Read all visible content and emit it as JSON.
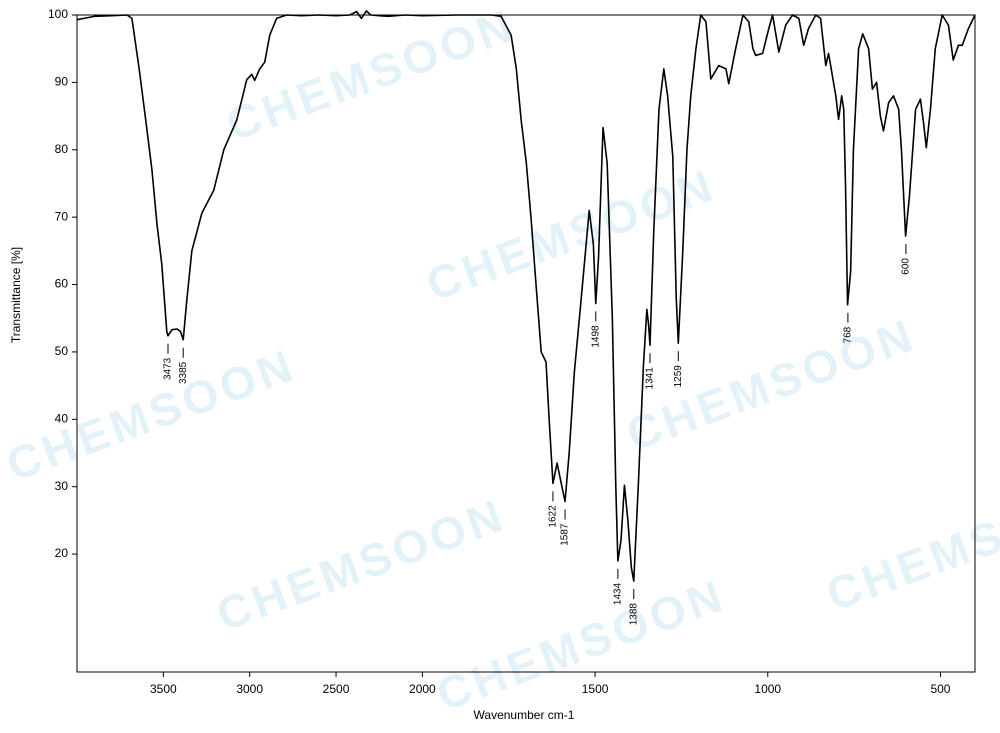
{
  "chart_data": {
    "type": "line",
    "y_label": "Transmittance [%]",
    "x_label": "Wavenumber cm-1",
    "watermark": "CHEMSOON",
    "xlim": [
      4000,
      400
    ],
    "x_break": 2000,
    "x_break_ratio": 2,
    "xticks": [
      3500,
      3000,
      2500,
      2000,
      1500,
      1000,
      500
    ],
    "ylim": [
      2.5,
      100
    ],
    "yticks": [
      20,
      30,
      40,
      50,
      60,
      70,
      80,
      90,
      100
    ],
    "x": [
      4000,
      3900,
      3800,
      3711,
      3682,
      3640,
      3600,
      3566,
      3537,
      3509,
      3480,
      3473,
      3450,
      3420,
      3400,
      3385,
      3364,
      3335,
      3277,
      3208,
      3150,
      3075,
      3046,
      3017,
      2988,
      2971,
      2942,
      2913,
      2884,
      2844,
      2786,
      2700,
      2600,
      2500,
      2420,
      2381,
      2353,
      2324,
      2300,
      2200,
      2100,
      2000,
      1900,
      1800,
      1772,
      1743,
      1728,
      1714,
      1699,
      1685,
      1671,
      1656,
      1642,
      1633,
      1622,
      1610,
      1600,
      1587,
      1575,
      1560,
      1540,
      1517,
      1505,
      1498,
      1490,
      1477,
      1465,
      1450,
      1440,
      1434,
      1425,
      1415,
      1405,
      1395,
      1388,
      1375,
      1360,
      1350,
      1345,
      1341,
      1330,
      1315,
      1301,
      1290,
      1275,
      1265,
      1259,
      1246,
      1234,
      1223,
      1208,
      1194,
      1179,
      1165,
      1142,
      1121,
      1113,
      1093,
      1072,
      1055,
      1043,
      1035,
      1015,
      997,
      986,
      968,
      948,
      928,
      910,
      896,
      882,
      861,
      847,
      832,
      824,
      803,
      795,
      786,
      780,
      775,
      769,
      760,
      752,
      737,
      725,
      708,
      697,
      685,
      674,
      665,
      650,
      636,
      621,
      613,
      601,
      590,
      572,
      558,
      549,
      541,
      529,
      515,
      495,
      477,
      463,
      448,
      437,
      419,
      400
    ],
    "series": [
      {
        "color": "#000000",
        "values": [
          99.3,
          99.8,
          99.9,
          100,
          99.5,
          92,
          84,
          77,
          69,
          63,
          53,
          52.4,
          53.3,
          53.4,
          53,
          51.8,
          57.7,
          65,
          70.6,
          74,
          80,
          84.4,
          87.4,
          90.4,
          91.2,
          90.3,
          92,
          93,
          97,
          99.5,
          100,
          99.9,
          100,
          99.9,
          100,
          100.5,
          99.5,
          100.6,
          100,
          99.8,
          100,
          99.9,
          100,
          100,
          99.8,
          97,
          92,
          84.4,
          78,
          69.6,
          60,
          50,
          48.5,
          40,
          30.5,
          33.5,
          31,
          27.8,
          35,
          47,
          58,
          71,
          66,
          57.2,
          64,
          83.3,
          78,
          55,
          30,
          19,
          22,
          30.2,
          25,
          18,
          16,
          30,
          48,
          56.3,
          54,
          51,
          68,
          86,
          92,
          88,
          79,
          58,
          51.3,
          65,
          80,
          88,
          95,
          100,
          99,
          90.5,
          92.5,
          92,
          89.8,
          95,
          100,
          99,
          95,
          94,
          94.3,
          98,
          100,
          94.5,
          98.5,
          100,
          99.5,
          95.5,
          98,
          100,
          99.5,
          92.5,
          94.3,
          88,
          84.5,
          88,
          86,
          75,
          57,
          62,
          80,
          95,
          97.2,
          95,
          89,
          90,
          85,
          82.8,
          87,
          88,
          86,
          80,
          67.2,
          73,
          86,
          87.5,
          84,
          80.3,
          86,
          95,
          100,
          98.5,
          93.3,
          95.5,
          95.5,
          98,
          100
        ]
      }
    ],
    "annotations": [
      {
        "x": 3473,
        "y": 52.4
      },
      {
        "x": 3385,
        "y": 51.8
      },
      {
        "x": 1622,
        "y": 30.5
      },
      {
        "x": 1587,
        "y": 27.8
      },
      {
        "x": 1498,
        "y": 57.2
      },
      {
        "x": 1434,
        "y": 19
      },
      {
        "x": 1388,
        "y": 16
      },
      {
        "x": 1341,
        "y": 51
      },
      {
        "x": 1259,
        "y": 51.3
      },
      {
        "x": 768,
        "y": 57
      },
      {
        "x": 600,
        "y": 67.2
      }
    ]
  }
}
